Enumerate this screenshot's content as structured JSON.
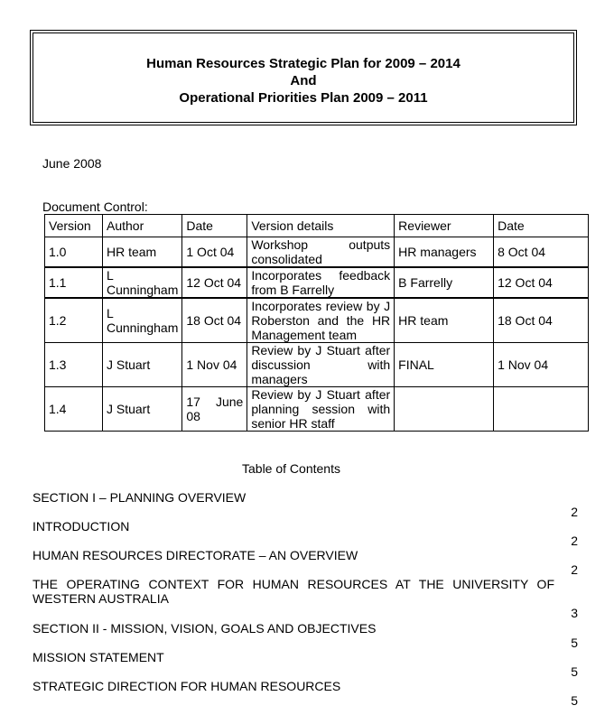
{
  "title": {
    "line1": "Human Resources Strategic Plan for 2009 – 2014",
    "line2": "And",
    "line3": "Operational Priorities Plan 2009 – 2011"
  },
  "date": "June 2008",
  "doc_control_label": "Document Control:",
  "table": {
    "headers": [
      "Version",
      "Author",
      "Date",
      "Version details",
      "Reviewer",
      "Date"
    ],
    "rows": [
      [
        "1.0",
        "HR team",
        "1 Oct 04",
        "Workshop outputs consolidated",
        "HR managers",
        "8 Oct 04"
      ],
      [
        "1.1",
        "L Cunningham",
        "12 Oct 04",
        "Incorporates feedback from B Farrelly",
        "B Farrelly",
        "12 Oct 04"
      ],
      [
        "1.2",
        "L Cunningham",
        "18 Oct 04",
        "Incorporates review by J Roberston and the HR Management team",
        "HR team",
        "18 Oct 04"
      ],
      [
        "1.3",
        "J Stuart",
        "1 Nov 04",
        "Review by J Stuart after discussion with managers",
        "FINAL",
        "1 Nov 04"
      ],
      [
        "1.4",
        "J Stuart",
        "17 June 08",
        "Review by J Stuart after planning session with senior HR staff",
        "",
        ""
      ]
    ]
  },
  "toc_title": "Table of Contents",
  "toc": [
    {
      "text": "SECTION I – PLANNING OVERVIEW",
      "page": "2"
    },
    {
      "text": "INTRODUCTION",
      "page": "2"
    },
    {
      "text": "HUMAN RESOURCES DIRECTORATE – AN OVERVIEW",
      "page": "2"
    },
    {
      "text": "THE OPERATING CONTEXT FOR HUMAN RESOURCES AT THE UNIVERSITY OF WESTERN AUSTRALIA",
      "page": "3"
    },
    {
      "text": "SECTION II - MISSION, VISION, GOALS AND OBJECTIVES",
      "page": "5"
    },
    {
      "text": "MISSION STATEMENT",
      "page": "5"
    },
    {
      "text": "STRATEGIC DIRECTION FOR HUMAN RESOURCES",
      "page": "5"
    }
  ]
}
